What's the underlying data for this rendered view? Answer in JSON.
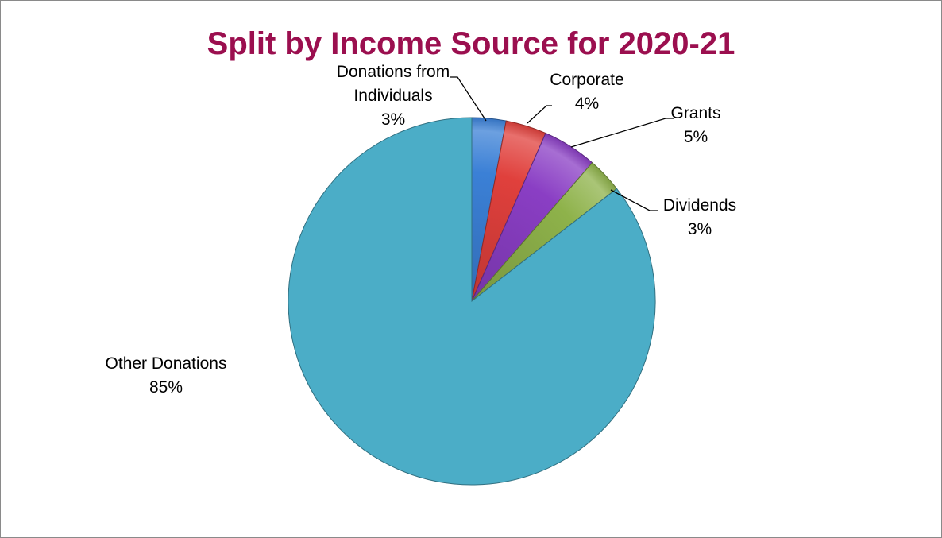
{
  "chart_data": {
    "type": "pie",
    "title": "Split by Income Source for 2020-21",
    "title_color": "#9b0f4f",
    "start_angle": "12 o'clock",
    "direction": "clockwise",
    "legend": "none",
    "slices": [
      {
        "label": "Donations from Individuals",
        "label_lines": [
          "Donations from",
          "Individuals"
        ],
        "percent_label": "3%",
        "value": 3,
        "color": "#3b80d6"
      },
      {
        "label": "Corporate",
        "label_lines": [
          "Corporate"
        ],
        "percent_label": "4%",
        "value": 3.6,
        "color": "#e0403c"
      },
      {
        "label": "Grants",
        "label_lines": [
          "Grants"
        ],
        "percent_label": "5%",
        "value": 4.8,
        "color": "#8a3ec4"
      },
      {
        "label": "Dividends",
        "label_lines": [
          "Dividends"
        ],
        "percent_label": "3%",
        "value": 3.1,
        "color": "#8eb24a"
      },
      {
        "label": "Other Donations",
        "label_lines": [
          "Other Donations"
        ],
        "percent_label": "85%",
        "value": 85.5,
        "color": "#4badc7"
      }
    ]
  }
}
